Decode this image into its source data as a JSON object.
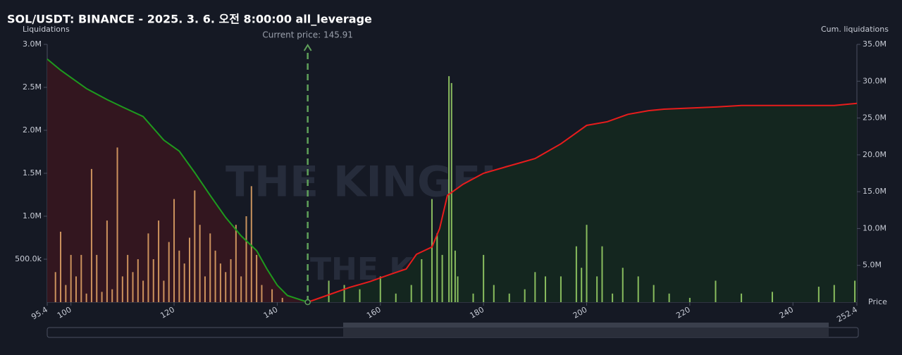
{
  "chart_data": {
    "type": "bar",
    "title": "SOL/USDT: BINANCE - 2025. 3. 6. 오전 8:00:00 all_leverage",
    "y_label": "Liquidations",
    "y2_label": "Cum. liquidations",
    "x_label": "Price",
    "watermark": "THE KINGFISHER",
    "current_price": {
      "value": 145.91,
      "label": "Current price: 145.91"
    },
    "xlim": [
      95.4,
      252.4
    ],
    "xticks": [
      95.4,
      100,
      120,
      140,
      160,
      180,
      200,
      220,
      240,
      252.4
    ],
    "ylim": [
      0,
      3000000
    ],
    "yticks": [
      {
        "value": 500000,
        "label": "500.0k"
      },
      {
        "value": 1000000,
        "label": "1.0M"
      },
      {
        "value": 1500000,
        "label": "1.5M"
      },
      {
        "value": 2000000,
        "label": "2.0M"
      },
      {
        "value": 2500000,
        "label": "2.5M"
      },
      {
        "value": 3000000,
        "label": "3.0M"
      }
    ],
    "y2lim": [
      0,
      35000000
    ],
    "y2ticks": [
      {
        "value": 5000000,
        "label": "5.0M"
      },
      {
        "value": 10000000,
        "label": "10.0M"
      },
      {
        "value": 15000000,
        "label": "15.0M"
      },
      {
        "value": 20000000,
        "label": "20.0M"
      },
      {
        "value": 25000000,
        "label": "25.0M"
      },
      {
        "value": 30000000,
        "label": "30.0M"
      },
      {
        "value": 35000000,
        "label": "35.0M"
      }
    ],
    "grid": false,
    "bars": [
      {
        "color": "#e8a868",
        "x": [
          97,
          98,
          99,
          100,
          101,
          102,
          103,
          104,
          105,
          106,
          107,
          108,
          109,
          110,
          111,
          112,
          113,
          114,
          115,
          116,
          117,
          118,
          119,
          120,
          121,
          122,
          123,
          124,
          125,
          126,
          127,
          128,
          129,
          130,
          131,
          132,
          133,
          134,
          135,
          136,
          137,
          139,
          141
        ],
        "values": [
          350000,
          820000,
          200000,
          550000,
          300000,
          550000,
          100000,
          1550000,
          550000,
          120000,
          950000,
          150000,
          1800000,
          300000,
          550000,
          350000,
          500000,
          250000,
          800000,
          500000,
          950000,
          250000,
          700000,
          1200000,
          600000,
          450000,
          750000,
          1300000,
          900000,
          300000,
          800000,
          600000,
          450000,
          350000,
          500000,
          900000,
          300000,
          1000000,
          1350000,
          550000,
          200000,
          150000,
          50000
        ]
      },
      {
        "color": "#9ed86a",
        "x": [
          150,
          153,
          156,
          160,
          163,
          166,
          168,
          170,
          171,
          172,
          173.3,
          173.8,
          174.5,
          175,
          178,
          180,
          182,
          185,
          188,
          190,
          192,
          195,
          198,
          199,
          200,
          202,
          203,
          205,
          207,
          210,
          213,
          216,
          220,
          225,
          230,
          236,
          245,
          248,
          252
        ],
        "values": [
          250000,
          200000,
          150000,
          300000,
          100000,
          200000,
          500000,
          1200000,
          800000,
          550000,
          2630000,
          2550000,
          600000,
          300000,
          100000,
          550000,
          200000,
          100000,
          150000,
          350000,
          300000,
          300000,
          650000,
          400000,
          900000,
          300000,
          650000,
          100000,
          400000,
          300000,
          200000,
          100000,
          50000,
          250000,
          100000,
          120000,
          180000,
          200000,
          250000
        ]
      }
    ],
    "lines": [
      {
        "axis": "y2",
        "color": "#1e9a1e",
        "fill": "#33161f",
        "x": [
          95.4,
          98,
          100,
          103,
          107,
          110,
          114,
          118,
          121,
          124,
          127,
          130,
          133,
          136,
          138,
          140,
          142,
          145.91
        ],
        "values": [
          33000000,
          31500000,
          30500000,
          29000000,
          27500000,
          26500000,
          25200000,
          22000000,
          20500000,
          17600000,
          14500000,
          11500000,
          9000000,
          7000000,
          4500000,
          2300000,
          900000,
          0
        ]
      },
      {
        "axis": "y2",
        "color": "#e81c1c",
        "fill": "#14261f",
        "x": [
          145.91,
          150,
          154,
          158,
          162,
          165,
          167,
          170,
          171.5,
          173,
          176,
          180,
          185,
          190,
          195,
          197,
          200,
          204,
          208,
          212,
          215,
          225,
          230,
          248,
          252.4
        ],
        "values": [
          0,
          1000000,
          2000000,
          2800000,
          3800000,
          4500000,
          6500000,
          7500000,
          10000000,
          14500000,
          16000000,
          17500000,
          18500000,
          19500000,
          21500000,
          22500000,
          24000000,
          24500000,
          25500000,
          26000000,
          26200000,
          26500000,
          26700000,
          26700000,
          27000000
        ]
      }
    ]
  }
}
